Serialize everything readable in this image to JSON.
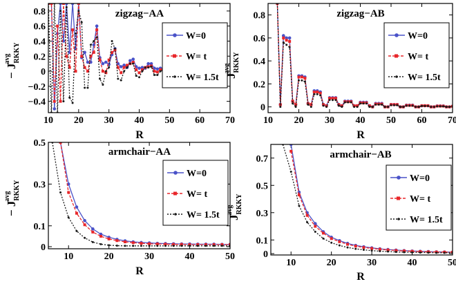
{
  "colors": {
    "w0": "#4a52c8",
    "wt": "#e8262a",
    "w15": "#1a1a1a",
    "frame": "#000000"
  },
  "chart_data": [
    {
      "type": "line",
      "title": "zigzag−AA",
      "xlabel": "R",
      "ylabel_main": "− J",
      "ylabel_sup": "avg",
      "ylabel_sub": "RKKY",
      "xlim": [
        10,
        70
      ],
      "ylim": [
        -0.55,
        0.9
      ],
      "xticks": [
        10,
        20,
        30,
        40,
        50,
        60,
        70
      ],
      "yticks": [
        -0.4,
        -0.2,
        0,
        0.2,
        0.4,
        0.6,
        0.8
      ],
      "ytick_labels": [
        "−0.4",
        "−0.2",
        "0",
        "0.2",
        "0.4",
        "0.6",
        "0.8"
      ],
      "legend_position": "right",
      "series": [
        {
          "name": "W=0",
          "key": "w0",
          "dash": "",
          "marker": "circle",
          "x": [
            10,
            11,
            12,
            13,
            14,
            15,
            16,
            17,
            18,
            19,
            20,
            21,
            22,
            23,
            24,
            25,
            26,
            27,
            28,
            29,
            30,
            31,
            32,
            33,
            34,
            35,
            36,
            37,
            38,
            39,
            40,
            41,
            42,
            43,
            44,
            45,
            46,
            47,
            48,
            49,
            50
          ],
          "y": [
            0.9,
            0.9,
            -0.5,
            0.5,
            0.9,
            0.4,
            0.9,
            0.25,
            0.9,
            0.3,
            0.9,
            0.18,
            0.25,
            0.12,
            0.12,
            0.35,
            0.6,
            0.18,
            0.1,
            0.12,
            0.09,
            0.22,
            0.3,
            0.1,
            0.06,
            0.08,
            0.05,
            0.14,
            0.16,
            0.06,
            0.04,
            0.05,
            0.04,
            0.1,
            0.1,
            0.04,
            0.03,
            0.04,
            0.03,
            0.07,
            0.05
          ]
        },
        {
          "name": "W= t",
          "key": "wt",
          "dash": "4,2",
          "marker": "square",
          "x": [
            10,
            11,
            12,
            13,
            14,
            15,
            16,
            17,
            18,
            19,
            20,
            21,
            22,
            23,
            24,
            25,
            26,
            27,
            28,
            29,
            30,
            31,
            32,
            33,
            34,
            35,
            36,
            37,
            38,
            39,
            40,
            41,
            42,
            43,
            44,
            45,
            46,
            47,
            48,
            49,
            50
          ],
          "y": [
            0.9,
            0.9,
            -0.4,
            0.6,
            -0.4,
            0.9,
            0.2,
            0.05,
            0.55,
            0.0,
            0.9,
            0.2,
            0.05,
            0.0,
            0.2,
            0.25,
            0.55,
            0.15,
            0.0,
            -0.02,
            0.15,
            0.25,
            0.28,
            0.05,
            -0.02,
            0.05,
            0.08,
            0.1,
            0.12,
            0.02,
            -0.02,
            0.02,
            0.05,
            0.06,
            0.07,
            0.0,
            -0.01,
            0.02,
            0.03,
            0.04,
            0.03
          ]
        },
        {
          "name": "W= 1.5t",
          "key": "w15",
          "dash": "2,2",
          "marker": "dot",
          "x": [
            10,
            11,
            12,
            13,
            14,
            15,
            16,
            17,
            18,
            19,
            20,
            21,
            22,
            23,
            24,
            25,
            26,
            27,
            28,
            29,
            30,
            31,
            32,
            33,
            34,
            35,
            36,
            37,
            38,
            39,
            40,
            41,
            42,
            43,
            44,
            45,
            46,
            47,
            48,
            49,
            50
          ],
          "y": [
            0.9,
            -0.55,
            0.9,
            -0.55,
            0.8,
            -0.4,
            0.85,
            -0.35,
            -0.42,
            0.5,
            0.8,
            0.65,
            -0.22,
            -0.22,
            0.35,
            0.4,
            0.45,
            -0.1,
            -0.18,
            0.0,
            0.05,
            0.4,
            0.3,
            -0.1,
            -0.12,
            0.0,
            0.05,
            0.1,
            0.1,
            -0.06,
            -0.08,
            0.0,
            0.05,
            0.05,
            0.06,
            -0.05,
            -0.05,
            0.0,
            0.02,
            0.04,
            0.02
          ]
        }
      ]
    },
    {
      "type": "line",
      "title": "zigzag−AB",
      "xlabel": "R",
      "ylabel_main": "J",
      "ylabel_sup": "avg",
      "ylabel_sub": "RKKY",
      "xlim": [
        10,
        70
      ],
      "ylim": [
        -0.05,
        0.9
      ],
      "xticks": [
        10,
        20,
        30,
        40,
        50,
        60,
        70
      ],
      "yticks": [
        0,
        0.2,
        0.4,
        0.6,
        0.8
      ],
      "ytick_labels": [
        "0",
        "0.2",
        "0.4",
        "0.6",
        "0.8"
      ],
      "legend_position": "right",
      "series": [
        {
          "name": "W=0",
          "key": "w0",
          "dash": "",
          "marker": "circle",
          "x": [
            13,
            14,
            15,
            16,
            17,
            18,
            19,
            20,
            21,
            22,
            23,
            24,
            25,
            26,
            27,
            28,
            29,
            30,
            31,
            32,
            33,
            34,
            35,
            36,
            37,
            38,
            39,
            40,
            41,
            42,
            43,
            44,
            45,
            46,
            47,
            48,
            49,
            50,
            51,
            52,
            53,
            54,
            55,
            56,
            57,
            58,
            59,
            60,
            61,
            62,
            63,
            64,
            65,
            66,
            67,
            68,
            69,
            70
          ],
          "y": [
            0.9,
            0.02,
            0.62,
            0.6,
            0.6,
            0.05,
            0.02,
            0.27,
            0.27,
            0.26,
            0.03,
            0.02,
            0.14,
            0.14,
            0.13,
            0.02,
            0.01,
            0.08,
            0.08,
            0.08,
            0.02,
            0.01,
            0.05,
            0.05,
            0.05,
            0.01,
            0.01,
            0.04,
            0.04,
            0.04,
            0.01,
            0.0,
            0.03,
            0.03,
            0.03,
            0.0,
            0.0,
            0.02,
            0.02,
            0.02,
            0.0,
            0.0,
            0.015,
            0.015,
            0.015,
            0.0,
            0.0,
            0.01,
            0.01,
            0.01,
            0.0,
            0.0,
            0.008,
            0.008,
            0.008,
            0.0,
            0.0,
            0.006
          ]
        },
        {
          "name": "W= t",
          "key": "wt",
          "dash": "4,2",
          "marker": "square",
          "x": [
            13,
            14,
            15,
            16,
            17,
            18,
            19,
            20,
            21,
            22,
            23,
            24,
            25,
            26,
            27,
            28,
            29,
            30,
            31,
            32,
            33,
            34,
            35,
            36,
            37,
            38,
            39,
            40,
            41,
            42,
            43,
            44,
            45,
            46,
            47,
            48,
            49,
            50,
            51,
            52,
            53,
            54,
            55,
            56,
            57,
            58,
            59,
            60,
            61,
            62,
            63,
            64,
            65,
            66,
            67,
            68,
            69,
            70
          ],
          "y": [
            0.9,
            0.02,
            0.6,
            0.58,
            0.57,
            0.05,
            0.02,
            0.26,
            0.26,
            0.25,
            0.03,
            0.02,
            0.13,
            0.13,
            0.12,
            0.02,
            0.01,
            0.075,
            0.075,
            0.075,
            0.02,
            0.01,
            0.045,
            0.045,
            0.045,
            0.01,
            0.01,
            0.035,
            0.035,
            0.035,
            0.01,
            0.0,
            0.025,
            0.025,
            0.025,
            0.0,
            0.0,
            0.02,
            0.02,
            0.02,
            0.0,
            0.0,
            0.013,
            0.013,
            0.013,
            0.0,
            0.0,
            0.01,
            0.01,
            0.01,
            0.0,
            0.0,
            0.007,
            0.007,
            0.007,
            0.0,
            0.0,
            0.005
          ]
        },
        {
          "name": "W= 1.5t",
          "key": "w15",
          "dash": "2,2",
          "marker": "dot",
          "x": [
            13,
            14,
            15,
            16,
            17,
            18,
            19,
            20,
            21,
            22,
            23,
            24,
            25,
            26,
            27,
            28,
            29,
            30,
            31,
            32,
            33,
            34,
            35,
            36,
            37,
            38,
            39,
            40,
            41,
            42,
            43,
            44,
            45,
            46,
            47,
            48,
            49,
            50,
            51,
            52,
            53,
            54,
            55,
            56,
            57,
            58,
            59,
            60,
            61,
            62,
            63,
            64,
            65,
            66,
            67,
            68,
            69,
            70
          ],
          "y": [
            0.9,
            0.0,
            0.56,
            0.54,
            0.52,
            0.03,
            0.0,
            0.23,
            0.23,
            0.22,
            0.02,
            0.0,
            0.11,
            0.11,
            0.1,
            0.01,
            0.0,
            0.06,
            0.06,
            0.06,
            0.01,
            0.0,
            0.04,
            0.04,
            0.04,
            0.0,
            0.0,
            0.03,
            0.03,
            0.03,
            0.0,
            0.0,
            0.02,
            0.02,
            0.02,
            0.0,
            0.0,
            0.015,
            0.015,
            0.015,
            0.0,
            0.0,
            0.01,
            0.01,
            0.01,
            0.0,
            0.0,
            0.008,
            0.008,
            0.008,
            0.0,
            0.0,
            0.005,
            0.005,
            0.005,
            0.0,
            0.0,
            0.004
          ]
        }
      ]
    },
    {
      "type": "line",
      "title": "armchair−AA",
      "xlabel": "R",
      "ylabel_main": "− J",
      "ylabel_sup": "avg",
      "ylabel_sub": "RKKY",
      "xlim": [
        5,
        50
      ],
      "ylim": [
        -0.01,
        0.5
      ],
      "xticks": [
        10,
        20,
        30,
        40,
        50
      ],
      "yticks": [
        0,
        0.1,
        0.3,
        0.5
      ],
      "ytick_labels": [
        "0",
        "0.1",
        "0.3",
        "0.5"
      ],
      "legend_position": "right",
      "series": [
        {
          "name": "W=0",
          "key": "w0",
          "dash": "",
          "marker": "circle",
          "x": [
            8,
            10,
            12,
            14,
            16,
            18,
            20,
            22,
            24,
            26,
            28,
            30,
            32,
            34,
            36,
            38,
            40,
            42,
            44,
            46,
            48,
            50
          ],
          "y": [
            0.5,
            0.3,
            0.19,
            0.125,
            0.085,
            0.06,
            0.045,
            0.035,
            0.028,
            0.023,
            0.02,
            0.018,
            0.016,
            0.015,
            0.014,
            0.013,
            0.013,
            0.012,
            0.012,
            0.012,
            0.011,
            0.011
          ]
        },
        {
          "name": "W= t",
          "key": "wt",
          "dash": "4,2",
          "marker": "square",
          "x": [
            8,
            10,
            12,
            14,
            16,
            18,
            20,
            22,
            24,
            26,
            28,
            30,
            32,
            34,
            36,
            38,
            40,
            42,
            44,
            46,
            48,
            50
          ],
          "y": [
            0.5,
            0.26,
            0.16,
            0.105,
            0.07,
            0.05,
            0.037,
            0.029,
            0.023,
            0.019,
            0.016,
            0.014,
            0.013,
            0.012,
            0.011,
            0.011,
            0.01,
            0.01,
            0.01,
            0.01,
            0.01,
            0.01
          ]
        },
        {
          "name": "W= 1.5t",
          "key": "w15",
          "dash": "2,2",
          "marker": "dot",
          "x": [
            6,
            8,
            10,
            12,
            14,
            16,
            18,
            20,
            22,
            24,
            26,
            28,
            30,
            32,
            34,
            36,
            38,
            40,
            42,
            44,
            46,
            48,
            50
          ],
          "y": [
            0.5,
            0.26,
            0.14,
            0.075,
            0.042,
            0.022,
            0.012,
            0.007,
            0.005,
            0.004,
            0.004,
            0.004,
            0.004,
            0.004,
            0.004,
            0.004,
            0.004,
            0.004,
            0.004,
            0.004,
            0.004,
            0.004,
            0.004
          ]
        }
      ]
    },
    {
      "type": "line",
      "title": "armchair−AB",
      "xlabel": "R",
      "ylabel_main": "J",
      "ylabel_sup": "avg",
      "ylabel_sub": "RKKY",
      "xlim": [
        5,
        50
      ],
      "ylim": [
        -0.01,
        0.8
      ],
      "xticks": [
        10,
        20,
        30,
        40,
        50
      ],
      "yticks": [
        0,
        0.1,
        0.3,
        0.5,
        0.7
      ],
      "ytick_labels": [
        "0",
        "0.1",
        "0.3",
        "0.5",
        "0.7"
      ],
      "legend_position": "right",
      "series": [
        {
          "name": "W=0",
          "key": "w0",
          "dash": "",
          "marker": "circle",
          "x": [
            10,
            12,
            14,
            16,
            18,
            20,
            22,
            24,
            26,
            28,
            30,
            32,
            34,
            36,
            38,
            40,
            42,
            44,
            46,
            48,
            50
          ],
          "y": [
            0.8,
            0.45,
            0.3,
            0.22,
            0.16,
            0.12,
            0.095,
            0.075,
            0.06,
            0.05,
            0.042,
            0.035,
            0.03,
            0.026,
            0.022,
            0.019,
            0.017,
            0.015,
            0.013,
            0.012,
            0.011
          ]
        },
        {
          "name": "W= t",
          "key": "wt",
          "dash": "4,2",
          "marker": "square",
          "x": [
            10,
            12,
            14,
            16,
            18,
            20,
            22,
            24,
            26,
            28,
            30,
            32,
            34,
            36,
            38,
            40,
            42,
            44,
            46,
            48,
            50
          ],
          "y": [
            0.75,
            0.43,
            0.28,
            0.2,
            0.15,
            0.11,
            0.087,
            0.068,
            0.055,
            0.045,
            0.038,
            0.032,
            0.027,
            0.023,
            0.02,
            0.017,
            0.015,
            0.013,
            0.012,
            0.011,
            0.01
          ]
        },
        {
          "name": "W= 1.5t",
          "key": "w15",
          "dash": "2,2",
          "marker": "dot",
          "x": [
            8,
            10,
            12,
            14,
            16,
            18,
            20,
            22,
            24,
            26,
            28,
            30,
            32,
            34,
            36,
            38,
            40,
            42,
            44,
            46,
            48,
            50
          ],
          "y": [
            0.8,
            0.6,
            0.35,
            0.23,
            0.16,
            0.11,
            0.08,
            0.06,
            0.045,
            0.035,
            0.028,
            0.022,
            0.018,
            0.015,
            0.012,
            0.01,
            0.009,
            0.008,
            0.007,
            0.006,
            0.006,
            0.005
          ]
        }
      ]
    }
  ]
}
